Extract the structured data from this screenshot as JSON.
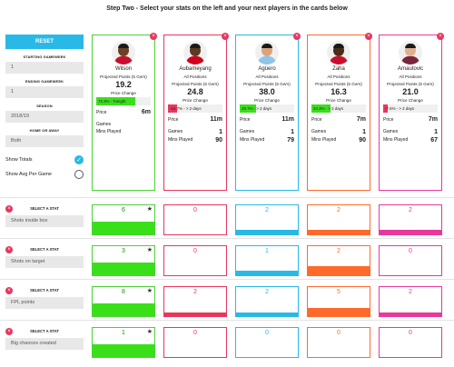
{
  "header": "Step Two - Select your stats on the left and your next players in the cards below",
  "left": {
    "reset_label": "RESET",
    "starting_gw_label": "STARTING GAMEWEEK",
    "starting_gw_value": "1",
    "ending_gw_label": "ENDING GAMEWEEK",
    "ending_gw_value": "1",
    "season_label": "SEASON",
    "season_value": "2018/19",
    "home_away_label": "HOME OR AWAY",
    "home_away_value": "Both",
    "show_totals_label": "Show Totals",
    "show_totals_checked": true,
    "show_avg_label": "Show Avg Per Game",
    "show_avg_checked": false
  },
  "players": [
    {
      "name": "Wilson",
      "subtitle": "",
      "proj_label": "Projected Points (5 Gw's)",
      "proj_value": "19.2",
      "price_change_label": "Price Change",
      "price_change_text": "72.3% - Tonight",
      "price_change_fraction": 0.723,
      "price_label": "Price",
      "price": "6m",
      "games_label": "Games",
      "games": "",
      "mins_label": "Mins Played",
      "mins": "",
      "border": "#4cd137",
      "bar": "#39e01a",
      "skin": "#6b4226",
      "shirt": "#c8102e",
      "selected": true
    },
    {
      "name": "Aubameyang",
      "subtitle": "All Positions",
      "proj_label": "Projected Points (5 Gw's)",
      "proj_value": "24.8",
      "price_change_label": "Price Change",
      "price_change_text": "-16.7% - > 2 days",
      "price_change_fraction": 0.167,
      "price_label": "Price",
      "price": "11m",
      "games_label": "Games",
      "games": "1",
      "mins_label": "Mins Played",
      "mins": "90",
      "border": "#e8375e",
      "bar": "#e8375e",
      "skin": "#5a3a22",
      "shirt": "#d1001c",
      "selected": false
    },
    {
      "name": "Agüero",
      "subtitle": "All Positions",
      "proj_label": "Projected Points (5 Gw's)",
      "proj_value": "38.0",
      "price_change_label": "Price Change",
      "price_change_text": "29.7% - > 2 days",
      "price_change_fraction": 0.297,
      "price_label": "Price",
      "price": "11m",
      "games_label": "Games",
      "games": "1",
      "mins_label": "Mins Played",
      "mins": "79",
      "border": "#29b9e6",
      "bar": "#39e01a",
      "skin": "#d9a47c",
      "shirt": "#8ec5ea",
      "selected": false
    },
    {
      "name": "Zaha",
      "subtitle": "All Positions",
      "proj_label": "Projected Points (5 Gw's)",
      "proj_value": "16.3",
      "price_change_label": "Price Change",
      "price_change_text": "34.3% - > 2 days",
      "price_change_fraction": 0.343,
      "price_label": "Price",
      "price": "7m",
      "games_label": "Games",
      "games": "1",
      "mins_label": "Mins Played",
      "mins": "90",
      "border": "#ff6a2b",
      "bar": "#39e01a",
      "skin": "#4a2c18",
      "shirt": "#c8102e",
      "selected": false
    },
    {
      "name": "Arnautovic",
      "subtitle": "All Positions",
      "proj_label": "Projected Points (5 Gw's)",
      "proj_value": "21.0",
      "price_change_label": "Price Change",
      "price_change_text": "-7.6% - > 2 days",
      "price_change_fraction": 0.076,
      "price_label": "Price",
      "price": "7m",
      "games_label": "Games",
      "games": "1",
      "mins_label": "Mins Played",
      "mins": "67",
      "border": "#e8389c",
      "bar": "#e8375e",
      "skin": "#e0b090",
      "shirt": "#7a263a",
      "selected": false
    }
  ],
  "stats": [
    {
      "title": "SELECT A STAT",
      "value": "Shots inside box",
      "values": [
        "6",
        "0",
        "2",
        "2",
        "2"
      ],
      "fills": [
        0.45,
        0,
        0.17,
        0.17,
        0.17
      ]
    },
    {
      "title": "SELECT A STAT",
      "value": "Shots on target",
      "values": [
        "3",
        "0",
        "1",
        "2",
        "0"
      ],
      "fills": [
        0.45,
        0,
        0.17,
        0.3,
        0
      ]
    },
    {
      "title": "SELECT A STAT",
      "value": "FPL points",
      "values": [
        "8",
        "2",
        "2",
        "5",
        "2"
      ],
      "fills": [
        0.45,
        0.12,
        0.12,
        0.28,
        0.12
      ]
    },
    {
      "title": "SELECT A STAT",
      "value": "Big chances created",
      "values": [
        "1",
        "0",
        "0",
        "0",
        "0"
      ],
      "fills": [
        0.45,
        0,
        0,
        0,
        0
      ]
    }
  ]
}
